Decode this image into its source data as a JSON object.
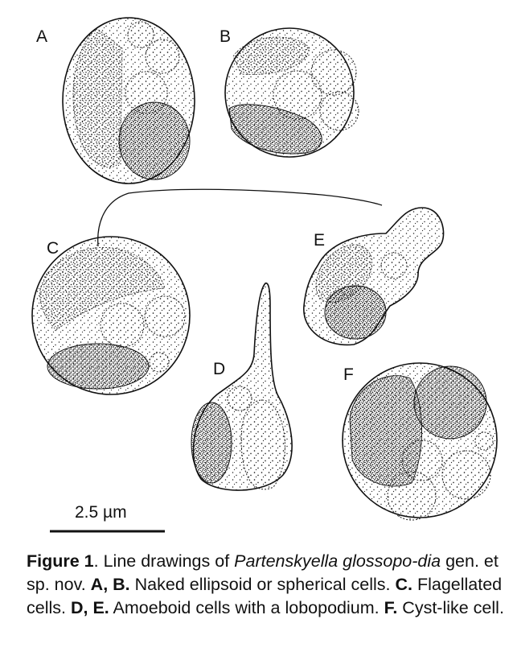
{
  "panels": {
    "A": "A",
    "B": "B",
    "C": "C",
    "D": "D",
    "E": "E",
    "F": "F"
  },
  "scale_bar": {
    "label": "2.5 µm"
  },
  "caption": {
    "figure_label": "Figure 1",
    "sep": ". ",
    "text1": "Line drawings of ",
    "species": "Partenskyella glossopo-dia",
    "text2": " gen. et sp. nov. ",
    "ab_label": "A, B.",
    "ab_text": " Naked ellipsoid or spherical cells. ",
    "c_label": "C.",
    "c_text": " Flagellated cells. ",
    "de_label": "D, E.",
    "de_text": " Amoeboid cells with a lobopodium. ",
    "f_label": "F.",
    "f_text": " Cyst-like cell."
  }
}
